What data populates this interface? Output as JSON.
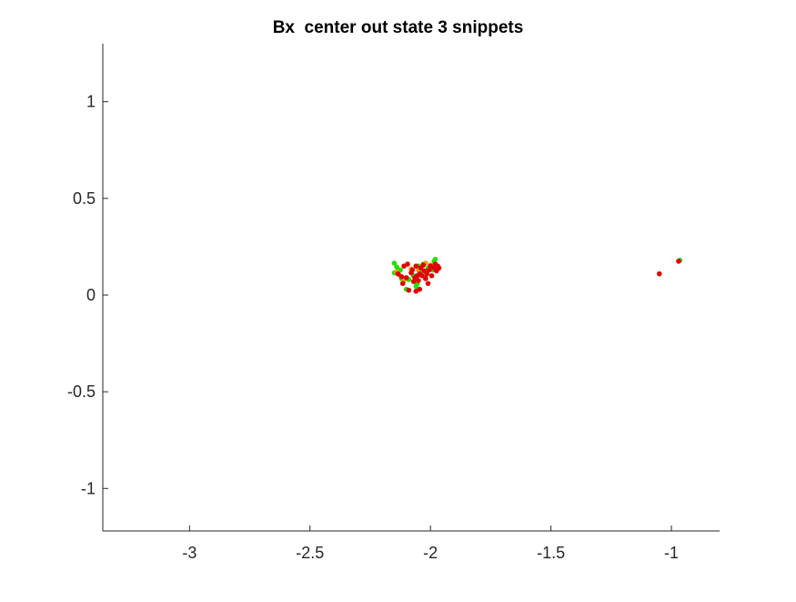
{
  "chart_data": {
    "type": "scatter",
    "title": "Bx  center out state 3 snippets",
    "xlabel": "",
    "ylabel": "",
    "xlim": [
      -3.36,
      -0.8
    ],
    "ylim": [
      -1.22,
      1.3
    ],
    "grid": false,
    "x_ticks": [
      -3,
      -2.5,
      -2,
      -1.5,
      -1
    ],
    "x_tick_labels": [
      "-3",
      "-2.5",
      "-2",
      "-1.5",
      "-1"
    ],
    "y_ticks": [
      -1,
      -0.5,
      0,
      0.5,
      1
    ],
    "y_tick_labels": [
      "-1",
      "-0.5",
      "0",
      "0.5",
      "1"
    ],
    "colors": {
      "axis": "#262626",
      "green": "#22e000",
      "orange": "#f0a000",
      "red": "#e00000"
    },
    "series": [
      {
        "color_key": "green",
        "points": [
          [
            -2.15,
            0.165
          ],
          [
            -2.15,
            0.115
          ],
          [
            -2.14,
            0.145
          ],
          [
            -2.12,
            0.085
          ],
          [
            -2.1,
            0.03
          ],
          [
            -2.09,
            0.08
          ],
          [
            -2.07,
            0.1
          ],
          [
            -2.06,
            0.045
          ],
          [
            -2.05,
            0.15
          ],
          [
            -2.04,
            0.12
          ],
          [
            -2.03,
            0.16
          ],
          [
            -2.02,
            0.09
          ],
          [
            -2.01,
            0.14
          ],
          [
            -1.99,
            0.13
          ],
          [
            -1.985,
            0.175
          ],
          [
            -1.98,
            0.185
          ],
          [
            -2.055,
            0.06
          ],
          [
            -2.125,
            0.13
          ],
          [
            -0.965,
            0.18
          ]
        ]
      },
      {
        "color_key": "orange",
        "points": [
          [
            -2.14,
            0.12
          ],
          [
            -2.13,
            0.105
          ],
          [
            -2.11,
            0.075
          ],
          [
            -2.08,
            0.135
          ],
          [
            -2.05,
            0.13
          ],
          [
            -2.02,
            0.165
          ],
          [
            -2.0,
            0.155
          ]
        ]
      },
      {
        "color_key": "red",
        "points": [
          [
            -2.135,
            0.11
          ],
          [
            -2.12,
            0.095
          ],
          [
            -2.115,
            0.06
          ],
          [
            -2.11,
            0.15
          ],
          [
            -2.1,
            0.09
          ],
          [
            -2.095,
            0.16
          ],
          [
            -2.09,
            0.025
          ],
          [
            -2.08,
            0.115
          ],
          [
            -2.075,
            0.13
          ],
          [
            -2.07,
            0.07
          ],
          [
            -2.065,
            0.09
          ],
          [
            -2.06,
            0.15
          ],
          [
            -2.06,
            0.02
          ],
          [
            -2.055,
            0.1
          ],
          [
            -2.05,
            0.075
          ],
          [
            -2.045,
            0.11
          ],
          [
            -2.04,
            0.14
          ],
          [
            -2.035,
            0.1
          ],
          [
            -2.03,
            0.155
          ],
          [
            -2.025,
            0.125
          ],
          [
            -2.02,
            0.085
          ],
          [
            -2.015,
            0.11
          ],
          [
            -2.01,
            0.06
          ],
          [
            -2.005,
            0.13
          ],
          [
            -2.0,
            0.15
          ],
          [
            -1.995,
            0.1
          ],
          [
            -1.985,
            0.14
          ],
          [
            -1.98,
            0.16
          ],
          [
            -1.975,
            0.125
          ],
          [
            -1.97,
            0.15
          ],
          [
            -1.965,
            0.14
          ],
          [
            -2.045,
            0.03
          ],
          [
            -1.05,
            0.11
          ],
          [
            -0.97,
            0.175
          ]
        ]
      }
    ]
  }
}
